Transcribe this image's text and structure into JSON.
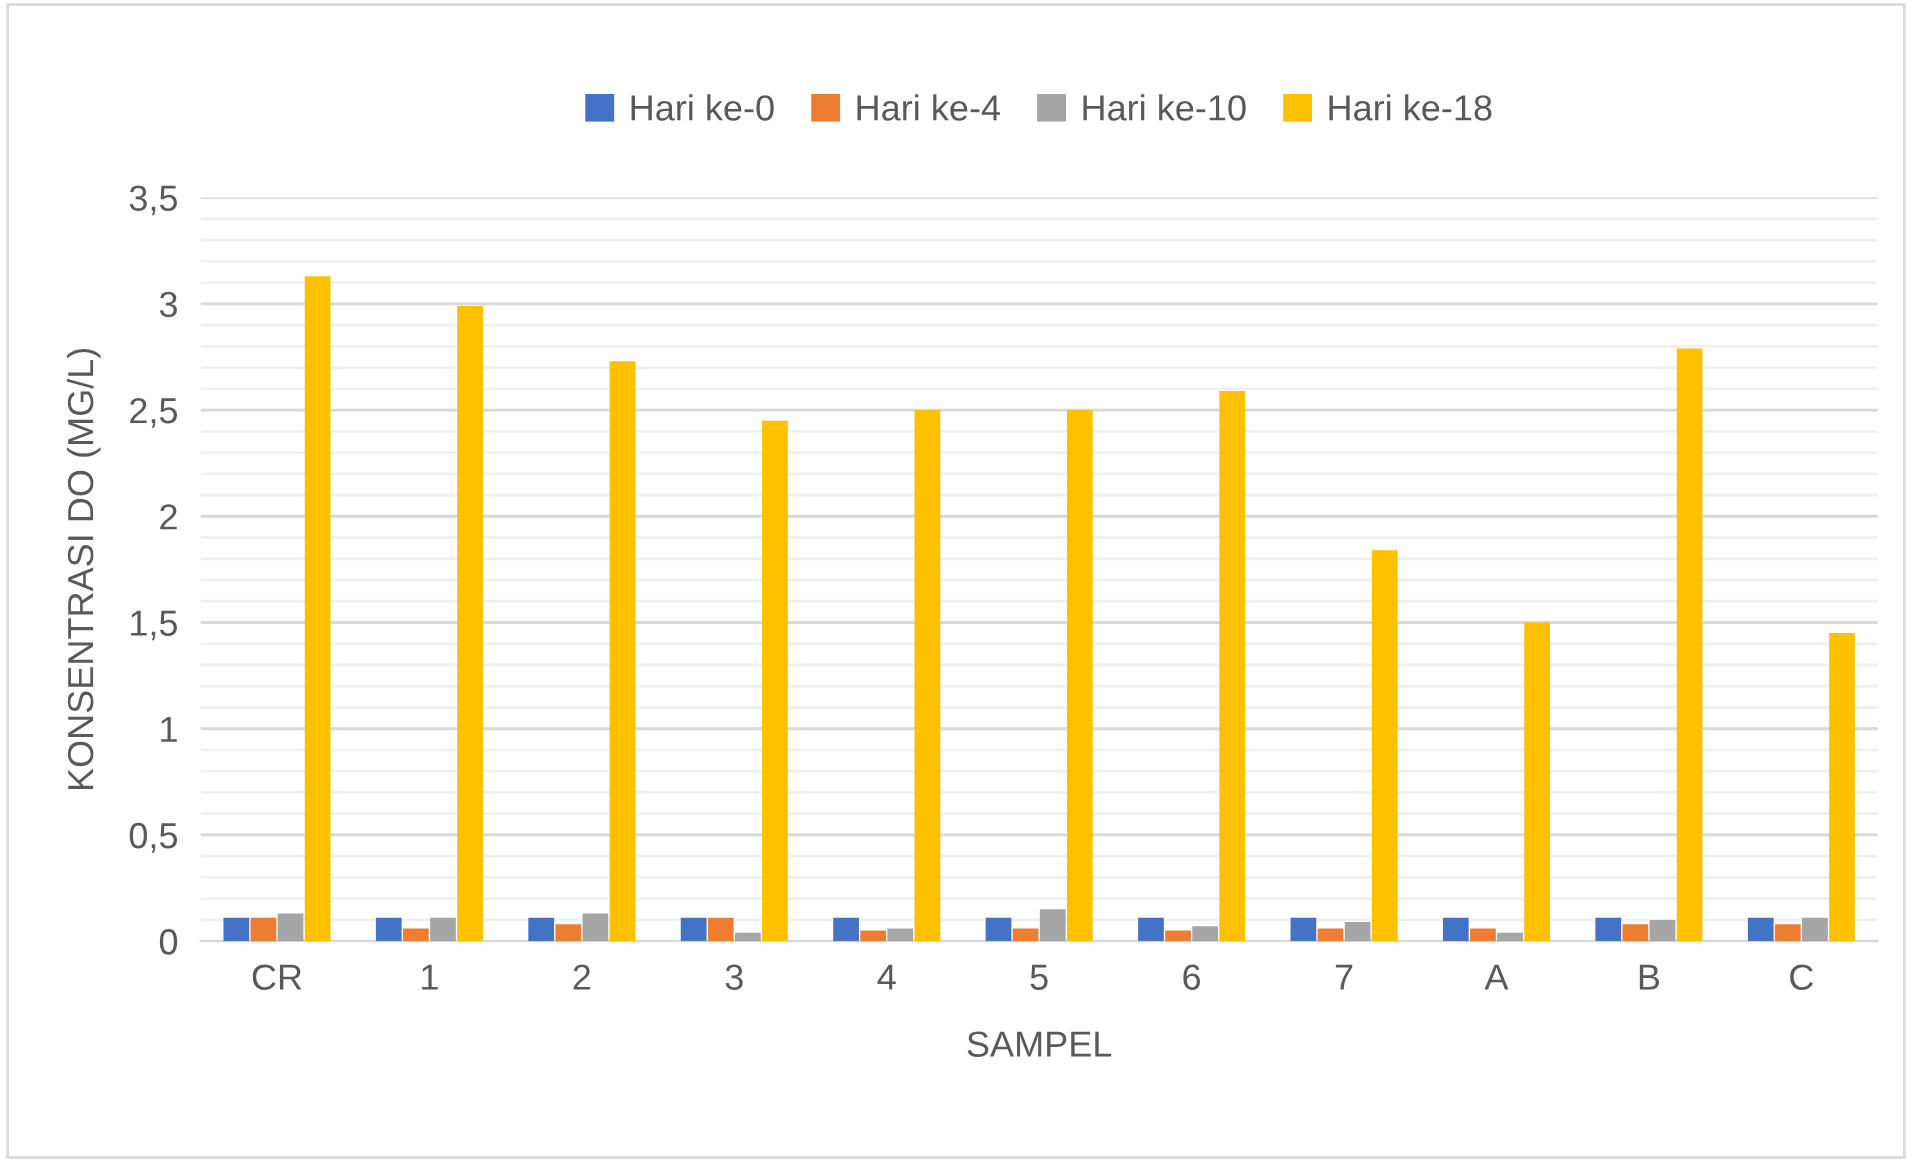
{
  "chart_data": {
    "type": "bar",
    "xlabel": "SAMPEL",
    "ylabel": "KONSENTRASI DO (MG/L)",
    "categories": [
      "CR",
      "1",
      "2",
      "3",
      "4",
      "5",
      "6",
      "7",
      "A",
      "B",
      "C"
    ],
    "series": [
      {
        "name": "Hari ke-0",
        "color": "#4472c4",
        "values": [
          0.11,
          0.11,
          0.11,
          0.11,
          0.11,
          0.11,
          0.11,
          0.11,
          0.11,
          0.11,
          0.11
        ]
      },
      {
        "name": "Hari ke-4",
        "color": "#ed7d31",
        "values": [
          0.11,
          0.06,
          0.08,
          0.11,
          0.05,
          0.06,
          0.05,
          0.06,
          0.06,
          0.08,
          0.08
        ]
      },
      {
        "name": "Hari ke-10",
        "color": "#a5a5a5",
        "values": [
          0.13,
          0.11,
          0.13,
          0.04,
          0.06,
          0.15,
          0.07,
          0.09,
          0.04,
          0.1,
          0.11
        ]
      },
      {
        "name": "Hari ke-18",
        "color": "#ffc000",
        "values": [
          3.13,
          2.99,
          2.73,
          2.45,
          2.5,
          2.5,
          2.59,
          1.84,
          1.5,
          2.79,
          1.45
        ]
      }
    ],
    "ylim": [
      0,
      3.5
    ],
    "yticks": [
      0,
      {
        "value": 0.5,
        "label": "0,5"
      },
      1,
      {
        "value": 1.5,
        "label": "1,5"
      },
      2,
      {
        "value": 2.5,
        "label": "2,5"
      },
      3,
      {
        "value": 3.5,
        "label": "3,5"
      }
    ],
    "grid": "y",
    "legend": "top"
  }
}
